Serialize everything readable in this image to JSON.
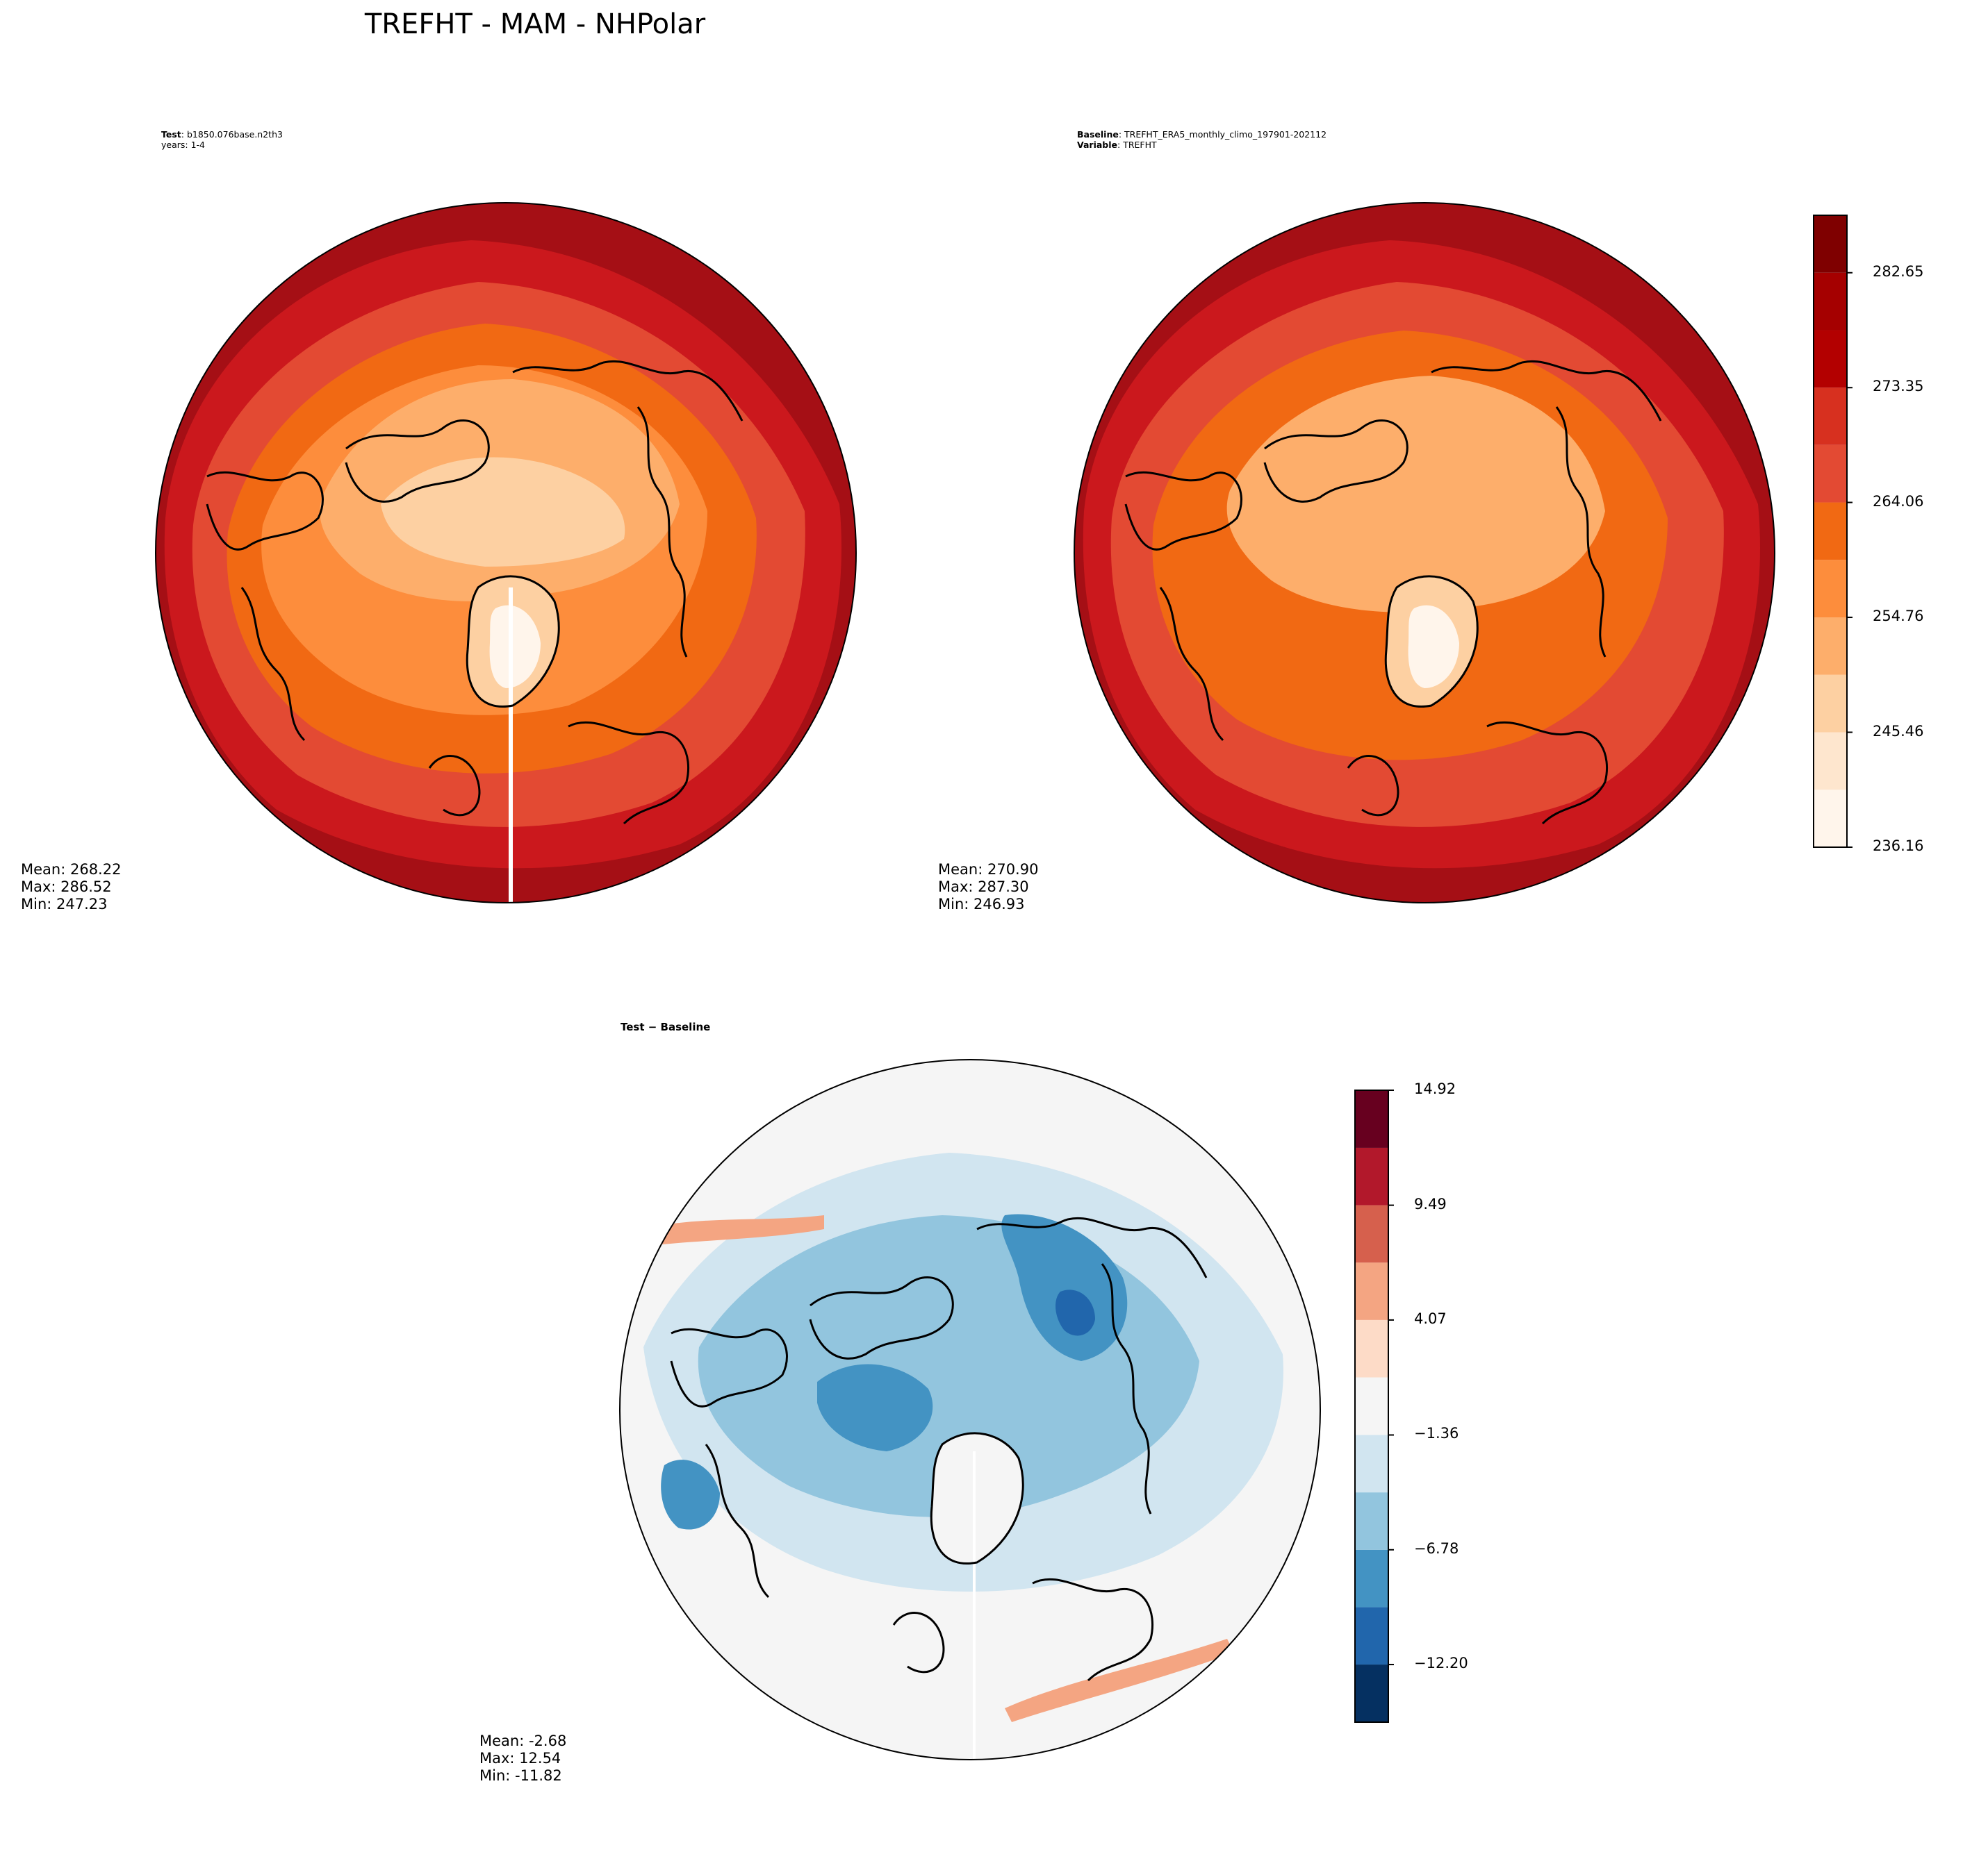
{
  "figure": {
    "title": "TREFHT - MAM - NHPolar"
  },
  "panels": {
    "test": {
      "header_lines": [
        {
          "label": "Test",
          "text": ": b1850.076base.n2th3"
        },
        {
          "label": "",
          "text": "years: 1-4"
        }
      ],
      "stats": {
        "mean": "Mean: 268.22",
        "max": "Max: 286.52",
        "min": "Min: 247.23"
      }
    },
    "baseline": {
      "header_lines": [
        {
          "label": "Baseline",
          "text": ": TREFHT_ERA5_monthly_climo_197901-202112"
        },
        {
          "label": "Variable",
          "text": ": TREFHT"
        }
      ],
      "stats": {
        "mean": "Mean: 270.90",
        "max": "Max: 287.30",
        "min": "Min: 246.93"
      }
    },
    "difference": {
      "title": "Test − Baseline",
      "stats": {
        "mean": "Mean: -2.68",
        "max": "Max: 12.54",
        "min": "Min: -11.82"
      }
    }
  },
  "chart_data": [
    {
      "type": "heatmap",
      "name": "main_colorbar",
      "projection": "north polar stereographic",
      "variable": "TREFHT",
      "levels": [
        236.16,
        240.81,
        245.46,
        250.11,
        254.76,
        259.41,
        264.06,
        268.71,
        273.35,
        278.0,
        282.65,
        287.3
      ],
      "tick_labels": [
        "282.65",
        "273.35",
        "264.06",
        "254.76",
        "245.46",
        "236.16"
      ],
      "colors": [
        "#fff5eb",
        "#fee6ce",
        "#fdd0a2",
        "#fdae6b",
        "#fd8d3c",
        "#f16913",
        "#e34a33",
        "#d7301f",
        "#b30000",
        "#a50000",
        "#7f0000"
      ],
      "ylim": [
        236.16,
        287.3
      ]
    },
    {
      "type": "heatmap",
      "name": "diff_colorbar",
      "variable": "TREFHT difference",
      "levels": [
        -14.92,
        -12.2,
        -9.49,
        -6.78,
        -4.07,
        -1.36,
        1.36,
        4.07,
        6.78,
        9.49,
        12.2,
        14.92
      ],
      "tick_labels": [
        "14.92",
        "9.49",
        "4.07",
        "−1.36",
        "−6.78",
        "−12.20"
      ],
      "tick_values": [
        14.92,
        9.49,
        4.07,
        -1.36,
        -6.78,
        -12.2
      ],
      "colors": [
        "#053061",
        "#2166ac",
        "#4393c3",
        "#92c5de",
        "#d1e5f0",
        "#f5f5f5",
        "#fddbc7",
        "#f4a582",
        "#d6604d",
        "#b2182b",
        "#67001f"
      ],
      "ylim": [
        -14.92,
        14.92
      ]
    }
  ],
  "map_colors": {
    "ocean_outer": "#a50f15",
    "ring1": "#cb181d",
    "ring2": "#e34a33",
    "ring3": "#f16913",
    "ring4": "#fd8d3c",
    "arctic": "#fdae6b",
    "arctic_light": "#fdd0a2",
    "greenland_core": "#fff5eb",
    "coast": "#000000",
    "diff_bg": "#f5f5f5",
    "diff_light_blue": "#d1e5f0",
    "diff_mid_blue": "#92c5de",
    "diff_blue": "#4393c3",
    "diff_dark_blue": "#2166ac",
    "diff_red": "#f4a582"
  }
}
